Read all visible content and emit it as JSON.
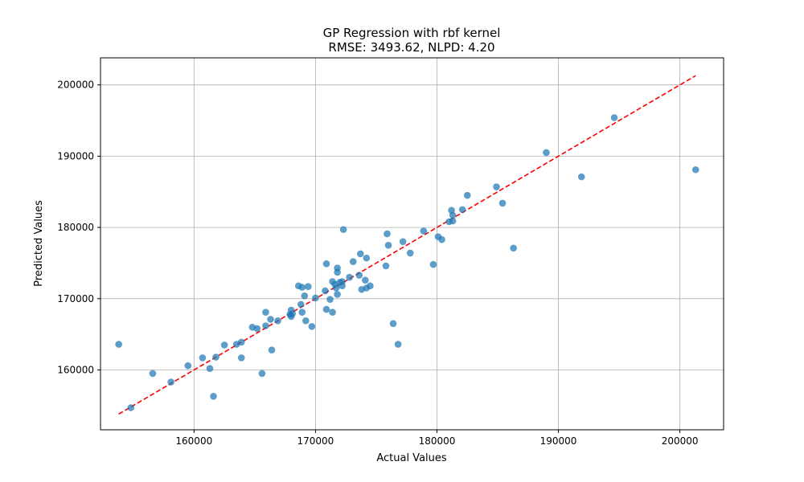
{
  "chart_data": {
    "type": "scatter",
    "title": "GP Regression with rbf kernel",
    "subtitle": "RMSE: 3493.62, NLPD: 4.20",
    "xlabel": "Actual Values",
    "ylabel": "Predicted Values",
    "xlim": [
      152300,
      203600
    ],
    "ylim": [
      151600,
      203800
    ],
    "xticks": [
      160000,
      170000,
      180000,
      190000,
      200000
    ],
    "yticks": [
      160000,
      170000,
      180000,
      190000,
      200000
    ],
    "grid": true,
    "series": [
      {
        "marker": "circle",
        "color": "#1f77b4",
        "points": [
          [
            153800,
            163600
          ],
          [
            154800,
            154700
          ],
          [
            156600,
            159500
          ],
          [
            158100,
            158300
          ],
          [
            159500,
            160600
          ],
          [
            160700,
            161700
          ],
          [
            161300,
            160200
          ],
          [
            161600,
            156300
          ],
          [
            161800,
            161800
          ],
          [
            162500,
            163500
          ],
          [
            163500,
            163600
          ],
          [
            163900,
            161700
          ],
          [
            163900,
            163900
          ],
          [
            164800,
            166000
          ],
          [
            165200,
            165800
          ],
          [
            165600,
            159500
          ],
          [
            165900,
            166200
          ],
          [
            165900,
            168100
          ],
          [
            166300,
            167100
          ],
          [
            166400,
            162800
          ],
          [
            166900,
            166900
          ],
          [
            167900,
            167800
          ],
          [
            168000,
            168400
          ],
          [
            168000,
            167500
          ],
          [
            168100,
            167900
          ],
          [
            168600,
            171800
          ],
          [
            168800,
            169200
          ],
          [
            168900,
            168100
          ],
          [
            168900,
            171600
          ],
          [
            169100,
            170400
          ],
          [
            169200,
            166900
          ],
          [
            169400,
            171700
          ],
          [
            169700,
            166100
          ],
          [
            170000,
            170100
          ],
          [
            170800,
            171100
          ],
          [
            170900,
            174900
          ],
          [
            170900,
            168500
          ],
          [
            171200,
            169900
          ],
          [
            171400,
            172400
          ],
          [
            171400,
            168100
          ],
          [
            171600,
            172000
          ],
          [
            171700,
            171500
          ],
          [
            171800,
            174300
          ],
          [
            171800,
            173700
          ],
          [
            171800,
            170600
          ],
          [
            172000,
            172300
          ],
          [
            172200,
            171800
          ],
          [
            172200,
            172400
          ],
          [
            172300,
            179700
          ],
          [
            172800,
            173000
          ],
          [
            173100,
            175200
          ],
          [
            173600,
            173300
          ],
          [
            173700,
            176300
          ],
          [
            173800,
            171300
          ],
          [
            174100,
            172600
          ],
          [
            174200,
            175700
          ],
          [
            174200,
            171500
          ],
          [
            174500,
            171800
          ],
          [
            175800,
            174600
          ],
          [
            175900,
            179100
          ],
          [
            176000,
            177500
          ],
          [
            176400,
            166500
          ],
          [
            176800,
            163600
          ],
          [
            177200,
            178000
          ],
          [
            177800,
            176400
          ],
          [
            178900,
            179500
          ],
          [
            179700,
            174800
          ],
          [
            180100,
            178700
          ],
          [
            180400,
            178300
          ],
          [
            181000,
            180800
          ],
          [
            181200,
            182400
          ],
          [
            181300,
            181700
          ],
          [
            181300,
            180900
          ],
          [
            182100,
            182500
          ],
          [
            182500,
            184500
          ],
          [
            184900,
            185700
          ],
          [
            185400,
            183400
          ],
          [
            186300,
            177100
          ],
          [
            189000,
            190500
          ],
          [
            191900,
            187100
          ],
          [
            194600,
            195400
          ],
          [
            201300,
            188100
          ]
        ]
      }
    ],
    "reference_line": {
      "style": "dashed",
      "color": "#ff0000",
      "from": [
        153800,
        153800
      ],
      "to": [
        201300,
        201300
      ]
    }
  }
}
